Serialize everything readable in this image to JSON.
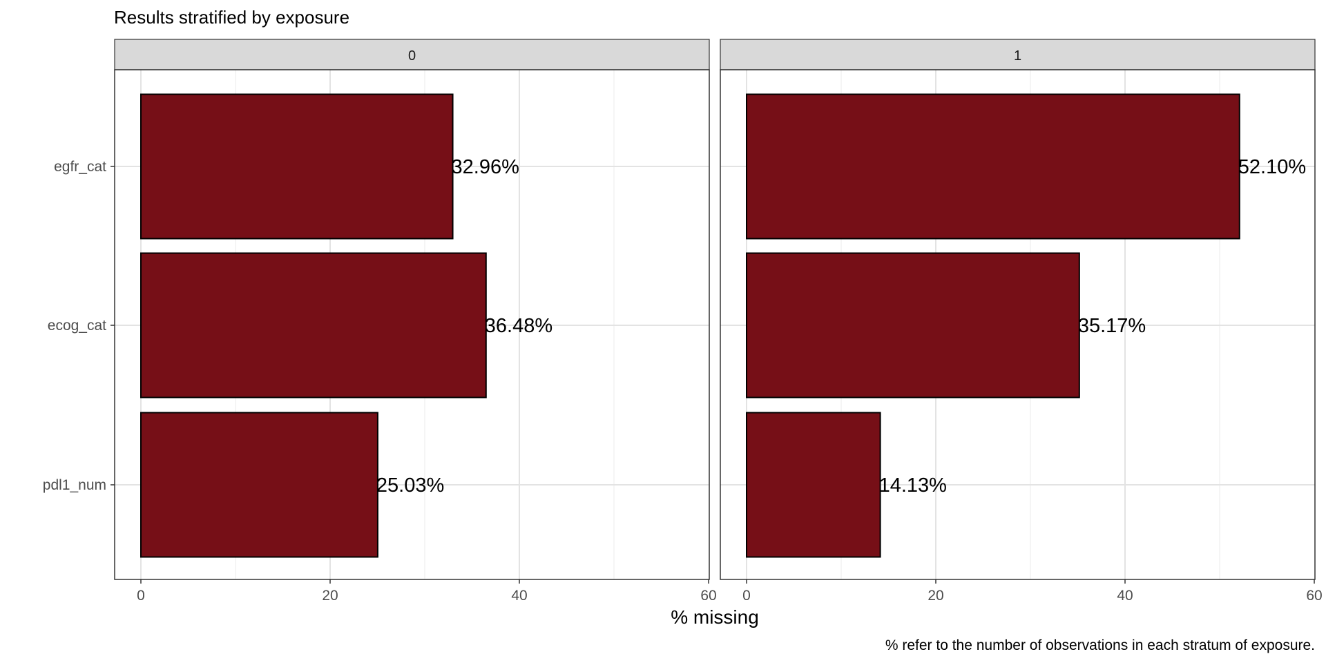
{
  "chart_data": {
    "type": "bar",
    "orientation": "horizontal",
    "title": "Results stratified by exposure",
    "xlabel": "% missing",
    "ylabel": "",
    "caption": "% refer to the number of observations in each stratum of exposure.",
    "categories": [
      "egfr_cat",
      "ecog_cat",
      "pdl1_num"
    ],
    "xlim": [
      0,
      60
    ],
    "x_ticks": [
      0,
      20,
      40,
      60
    ],
    "grid": true,
    "bar_color": "#760F17",
    "panels": [
      {
        "strip_label": "0",
        "values": [
          32.96,
          36.48,
          25.03
        ],
        "labels": [
          "32.96%",
          "36.48%",
          "25.03%"
        ]
      },
      {
        "strip_label": "1",
        "values": [
          52.1,
          35.17,
          14.13
        ],
        "labels": [
          "52.10%",
          "35.17%",
          "14.13%"
        ]
      }
    ]
  }
}
